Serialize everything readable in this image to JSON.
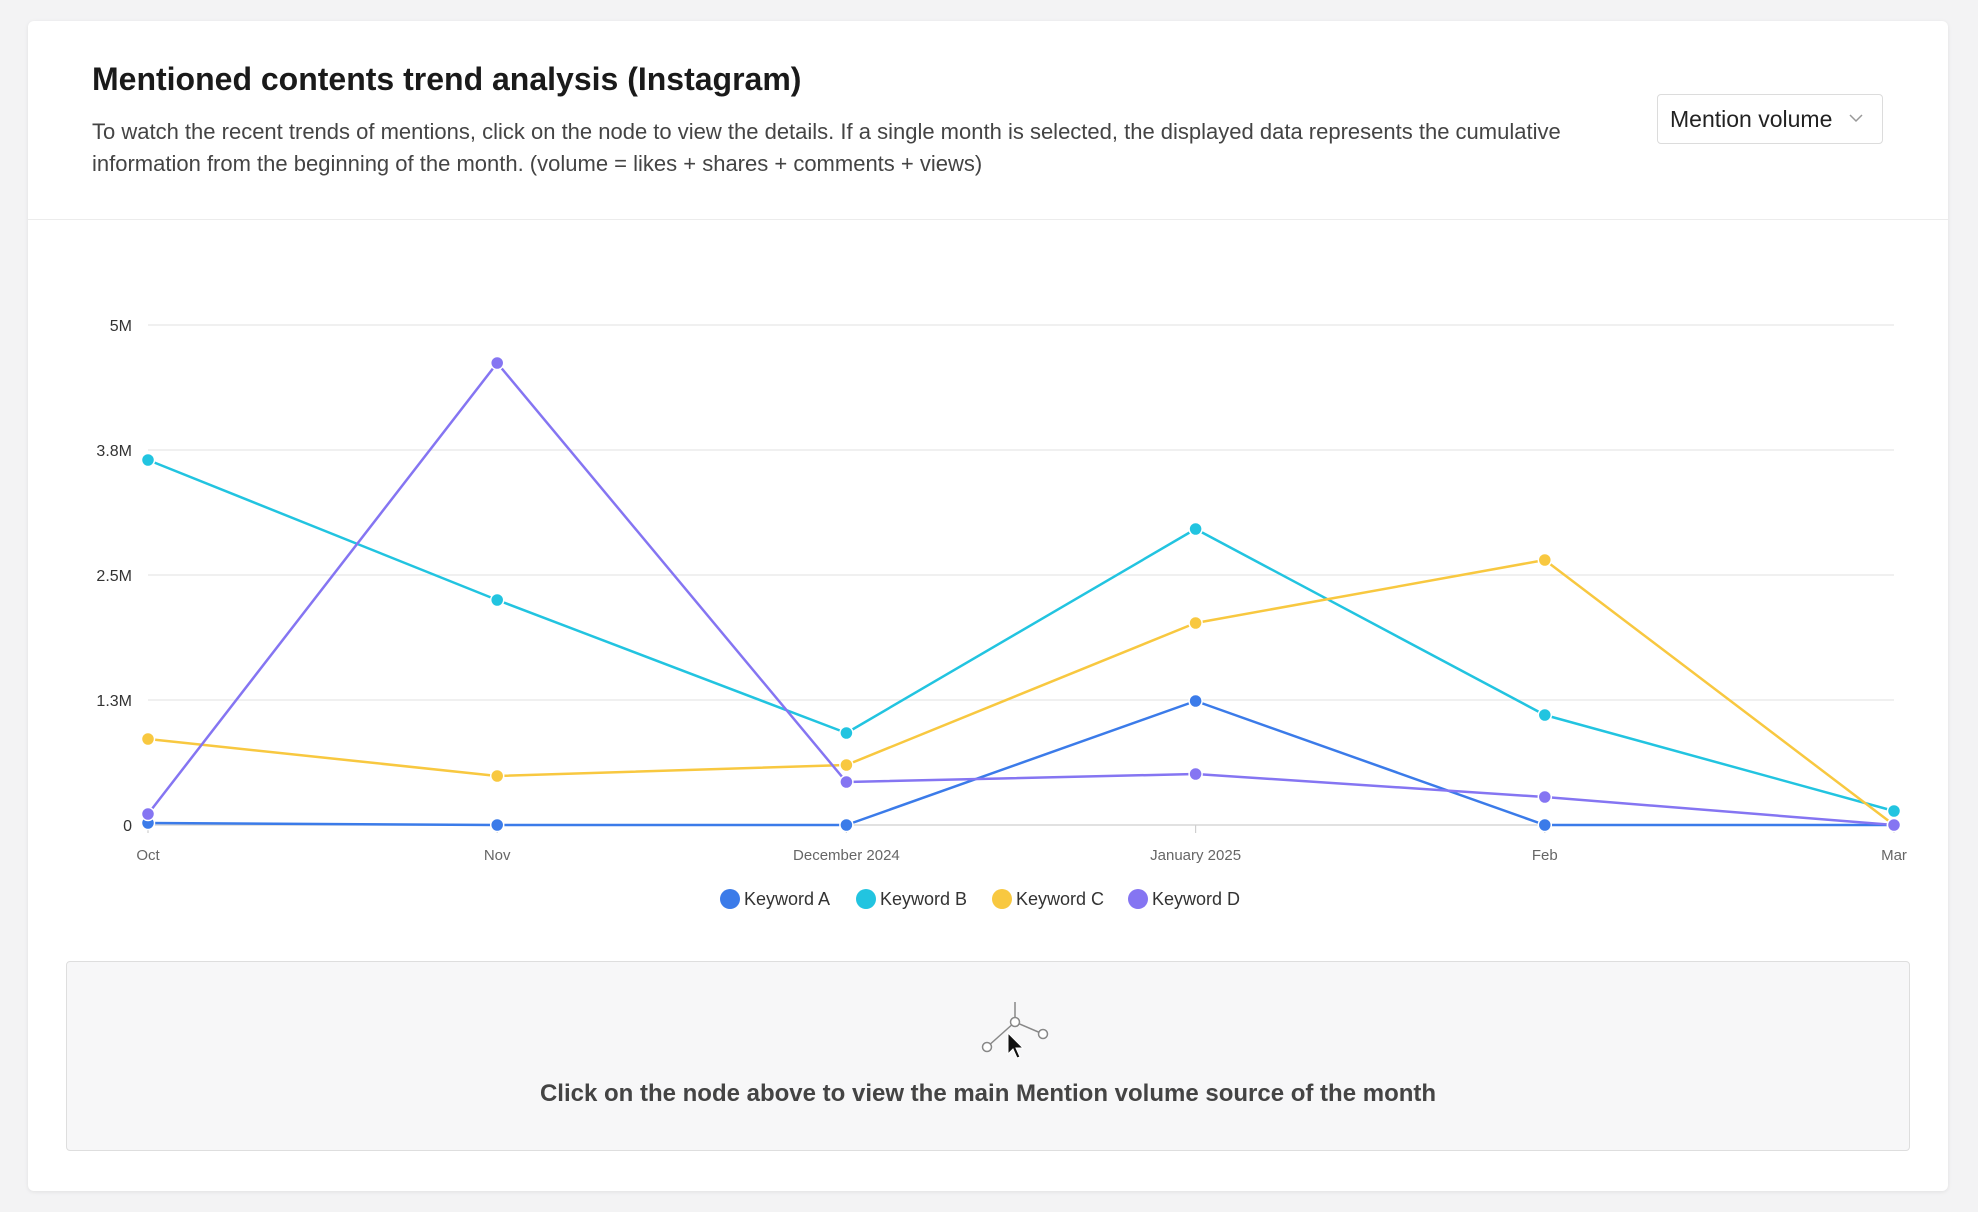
{
  "header": {
    "title": "Mentioned contents trend analysis (Instagram)",
    "description": "To watch the recent trends of mentions, click on the node to view the details. If a single month is selected, the displayed data represents the cumulative information from the beginning of the month. (volume = likes + shares + comments + views)"
  },
  "metric_select": {
    "value": "Mention volume",
    "icon": "chevron-down-icon"
  },
  "chart_data": {
    "type": "line",
    "categories": [
      "Oct",
      "Nov",
      "December 2024",
      "January 2025",
      "Feb",
      "Mar"
    ],
    "y_ticks": [
      {
        "label": "0",
        "value": 0
      },
      {
        "label": "1.3M",
        "value": 1250000
      },
      {
        "label": "2.5M",
        "value": 2500000
      },
      {
        "label": "3.8M",
        "value": 3750000
      },
      {
        "label": "5M",
        "value": 5000000
      }
    ],
    "ylim": [
      0,
      5000000
    ],
    "grid": true,
    "legend_position": "bottom-center",
    "series": [
      {
        "name": "Keyword A",
        "color": "#3b7be9",
        "values": [
          20000,
          0,
          0,
          1240000,
          0,
          0
        ]
      },
      {
        "name": "Keyword B",
        "color": "#22c4e0",
        "values": [
          3650000,
          2250000,
          920000,
          2960000,
          1100000,
          140000
        ]
      },
      {
        "name": "Keyword C",
        "color": "#f8c840",
        "values": [
          860000,
          490000,
          600000,
          2020000,
          2650000,
          0
        ]
      },
      {
        "name": "Keyword D",
        "color": "#8575f2",
        "values": [
          110000,
          4620000,
          430000,
          510000,
          280000,
          0
        ]
      }
    ]
  },
  "info_box": {
    "icon": "node-cursor-icon",
    "text": "Click on the node above to view the main Mention volume source of the month"
  }
}
